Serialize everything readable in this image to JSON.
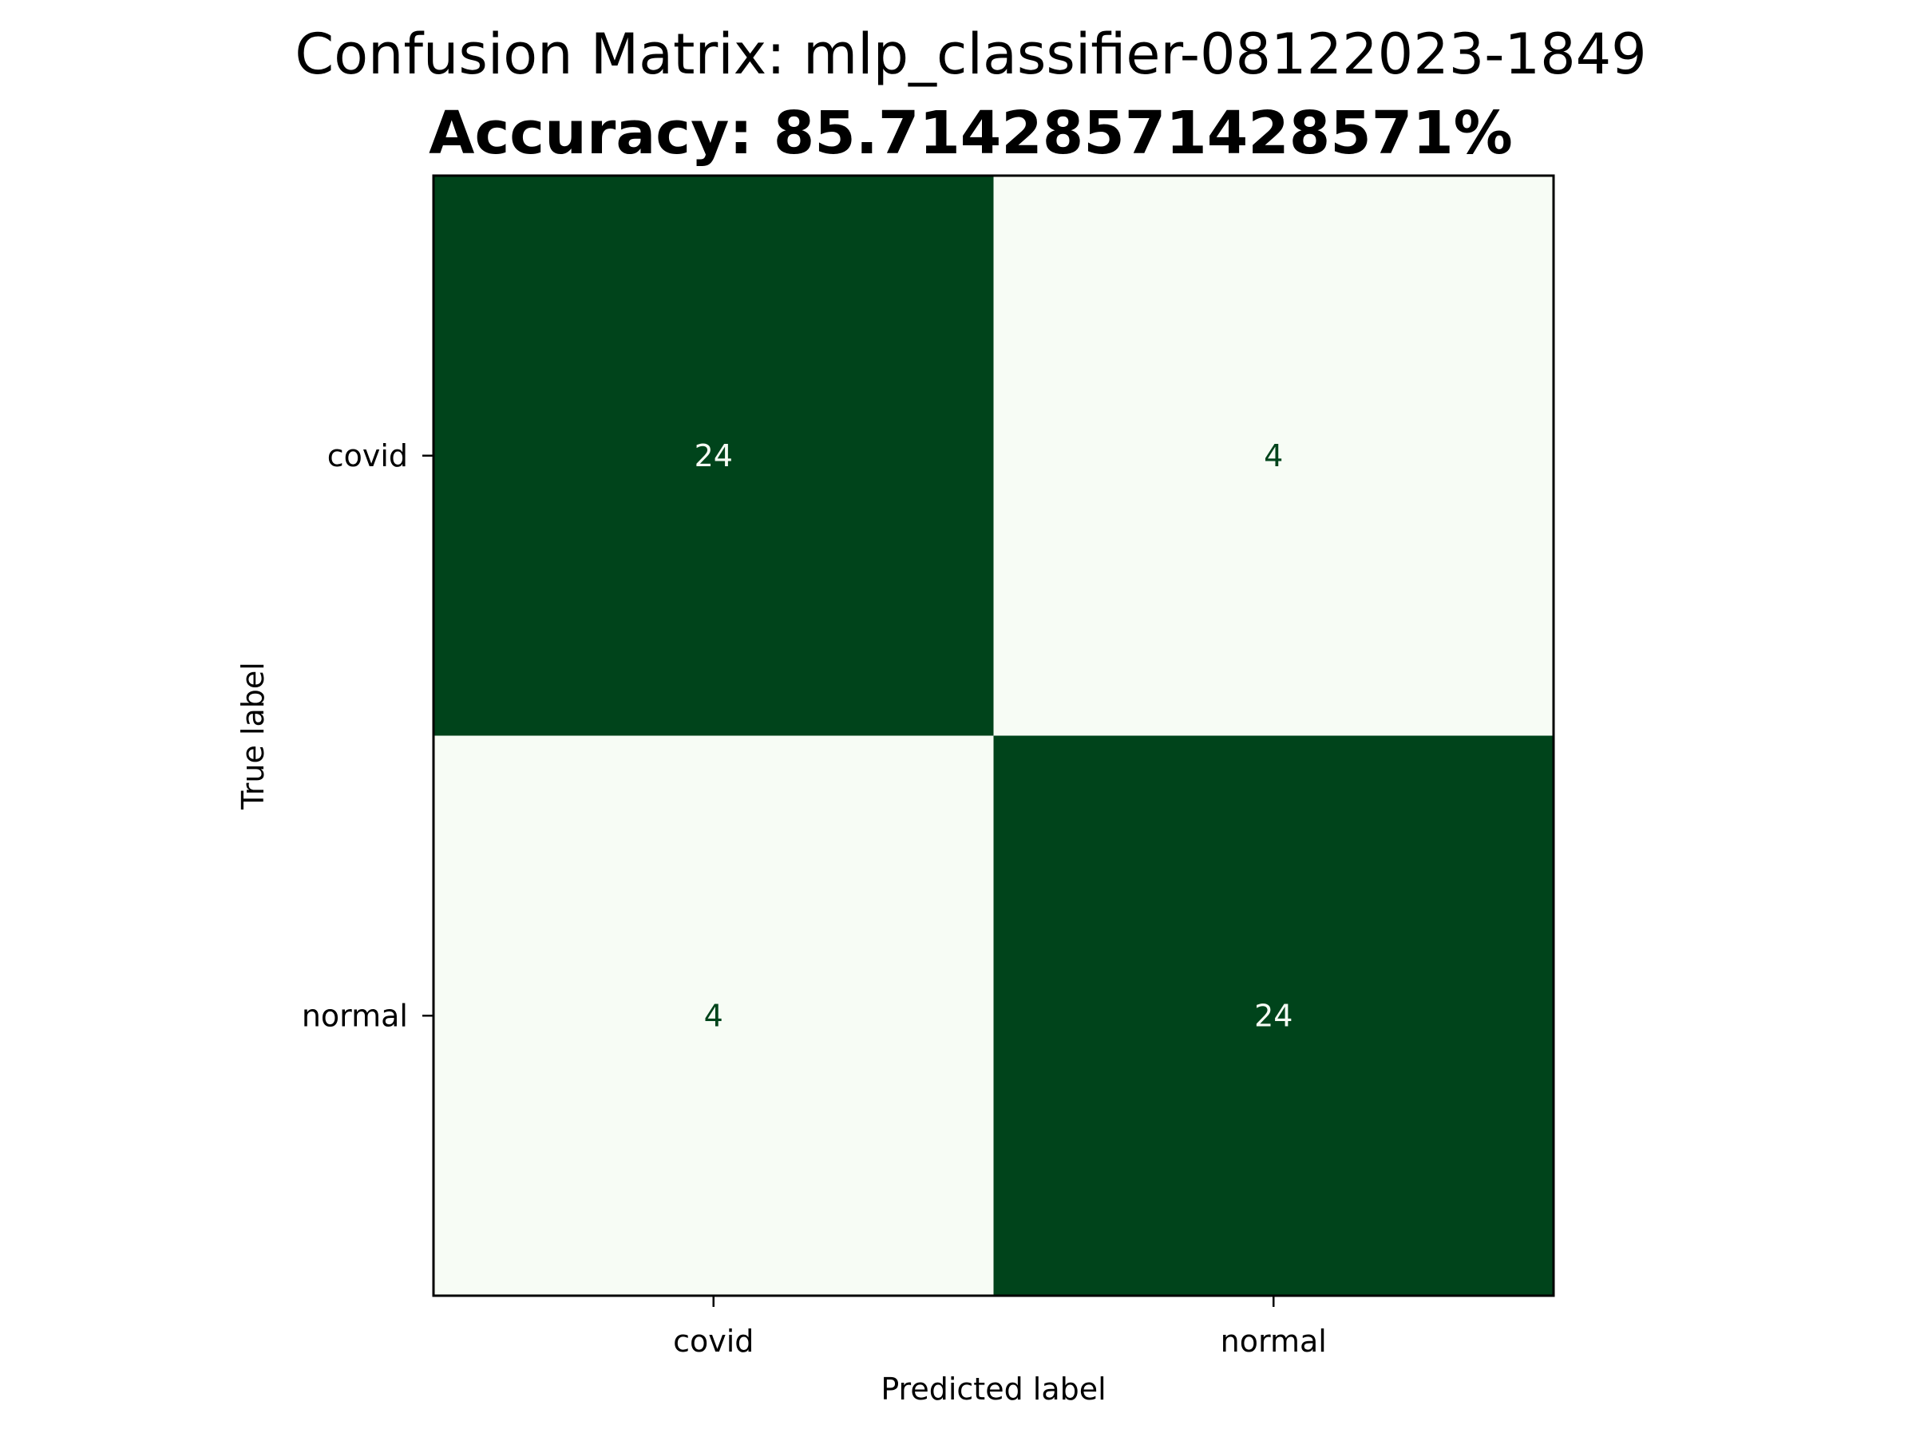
{
  "chart_data": {
    "type": "heatmap",
    "title": "Confusion Matrix: mlp_classifier-08122023-1849",
    "subtitle": "Accuracy: 85.71428571428571%",
    "xlabel": "Predicted label",
    "ylabel": "True label",
    "x_categories": [
      "covid",
      "normal"
    ],
    "y_categories": [
      "covid",
      "normal"
    ],
    "matrix": [
      [
        24,
        4
      ],
      [
        4,
        24
      ]
    ],
    "colormap": "Greens",
    "colors": {
      "high": "#00441b",
      "low": "#f7fcf5",
      "text_on_dark": "#f7fcf5",
      "text_on_light": "#00441b"
    },
    "grid": false,
    "colorbar": false
  }
}
